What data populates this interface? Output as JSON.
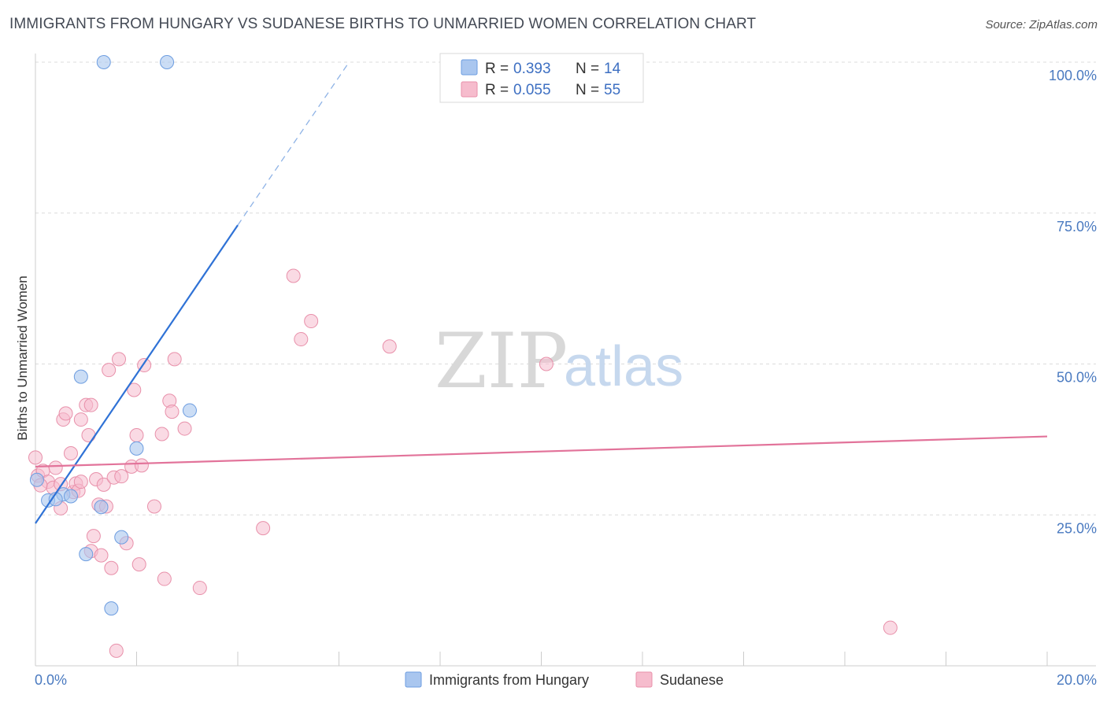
{
  "header": {
    "title": "IMMIGRANTS FROM HUNGARY VS SUDANESE BIRTHS TO UNMARRIED WOMEN CORRELATION CHART",
    "source": "Source: ZipAtlas.com"
  },
  "watermark": {
    "zip": "ZIP",
    "atlas": "atlas"
  },
  "colors": {
    "blue_fill": "#a9c6ef",
    "blue_stroke": "#6d9de0",
    "blue_line": "#2f72d6",
    "pink_fill": "#f6bccd",
    "pink_stroke": "#e890aa",
    "pink_line": "#e2739a",
    "tick_text": "#4a7ac0",
    "grid": "#dcdcdc"
  },
  "legend": {
    "rows": [
      {
        "r_label": "R =",
        "r_value": "0.393",
        "n_label": "N =",
        "n_value": "14"
      },
      {
        "r_label": "R =",
        "r_value": "0.055",
        "n_label": "N =",
        "n_value": "55"
      }
    ]
  },
  "bottom_legend": {
    "items": [
      "Immigrants from Hungary",
      "Sudanese"
    ]
  },
  "chart_data": {
    "type": "scatter",
    "title": "IMMIGRANTS FROM HUNGARY VS SUDANESE BIRTHS TO UNMARRIED WOMEN CORRELATION CHART",
    "xlabel": "",
    "ylabel": "Births to Unmarried Women",
    "xlim": [
      0,
      20
    ],
    "ylim": [
      0,
      102
    ],
    "x_tick_labels": [
      "0.0%",
      "20.0%"
    ],
    "y_ticks": [
      25,
      50,
      75,
      100
    ],
    "y_tick_labels": [
      "25.0%",
      "50.0%",
      "75.0%",
      "100.0%"
    ],
    "grid": true,
    "series": [
      {
        "name": "Immigrants from Hungary",
        "r": 0.393,
        "n": 14,
        "points": [
          [
            0.03,
            30.8
          ],
          [
            0.25,
            27.4
          ],
          [
            0.55,
            28.4
          ],
          [
            0.7,
            28.1
          ],
          [
            0.9,
            47.9
          ],
          [
            1.0,
            18.5
          ],
          [
            1.3,
            26.3
          ],
          [
            1.5,
            9.5
          ],
          [
            1.7,
            21.3
          ],
          [
            2.0,
            36.0
          ],
          [
            3.05,
            42.3
          ],
          [
            1.35,
            100.0
          ],
          [
            2.6,
            100.0
          ],
          [
            0.4,
            27.6
          ]
        ],
        "trend": {
          "x0": 0,
          "y0": 23.6,
          "x1": 4.0,
          "y1": 73.0,
          "dashed_to_x": 6.2,
          "dashed_to_y": 100.0
        }
      },
      {
        "name": "Sudanese",
        "r": 0.055,
        "n": 55,
        "points": [
          [
            0.0,
            34.5
          ],
          [
            0.05,
            31.5
          ],
          [
            0.15,
            32.3
          ],
          [
            0.25,
            30.5
          ],
          [
            0.35,
            29.5
          ],
          [
            0.4,
            32.8
          ],
          [
            0.5,
            30.1
          ],
          [
            0.5,
            26.1
          ],
          [
            0.55,
            40.8
          ],
          [
            0.6,
            41.8
          ],
          [
            0.7,
            35.2
          ],
          [
            0.75,
            28.8
          ],
          [
            0.8,
            30.2
          ],
          [
            0.85,
            29.0
          ],
          [
            0.9,
            30.5
          ],
          [
            0.9,
            40.8
          ],
          [
            1.0,
            43.2
          ],
          [
            1.05,
            38.2
          ],
          [
            1.1,
            43.2
          ],
          [
            1.1,
            19.0
          ],
          [
            1.15,
            21.5
          ],
          [
            1.2,
            30.9
          ],
          [
            1.25,
            26.7
          ],
          [
            1.3,
            18.3
          ],
          [
            1.35,
            30.0
          ],
          [
            1.4,
            26.4
          ],
          [
            1.5,
            16.2
          ],
          [
            1.55,
            31.2
          ],
          [
            1.6,
            2.5
          ],
          [
            1.65,
            50.8
          ],
          [
            1.45,
            49.0
          ],
          [
            1.8,
            20.3
          ],
          [
            1.9,
            33.0
          ],
          [
            1.95,
            45.7
          ],
          [
            2.0,
            38.2
          ],
          [
            2.05,
            16.8
          ],
          [
            2.1,
            33.2
          ],
          [
            2.15,
            49.8
          ],
          [
            2.35,
            26.4
          ],
          [
            2.5,
            38.4
          ],
          [
            2.55,
            14.4
          ],
          [
            2.65,
            43.9
          ],
          [
            2.7,
            42.1
          ],
          [
            2.75,
            50.8
          ],
          [
            2.95,
            39.3
          ],
          [
            3.25,
            12.9
          ],
          [
            4.5,
            22.8
          ],
          [
            5.1,
            64.6
          ],
          [
            5.25,
            54.1
          ],
          [
            5.45,
            57.1
          ],
          [
            7.0,
            52.9
          ],
          [
            10.1,
            50.0
          ],
          [
            16.9,
            6.3
          ],
          [
            0.1,
            29.9
          ],
          [
            1.7,
            31.4
          ]
        ],
        "trend": {
          "x0": 0,
          "y0": 33.0,
          "x1": 20.0,
          "y1": 38.0
        }
      }
    ]
  }
}
